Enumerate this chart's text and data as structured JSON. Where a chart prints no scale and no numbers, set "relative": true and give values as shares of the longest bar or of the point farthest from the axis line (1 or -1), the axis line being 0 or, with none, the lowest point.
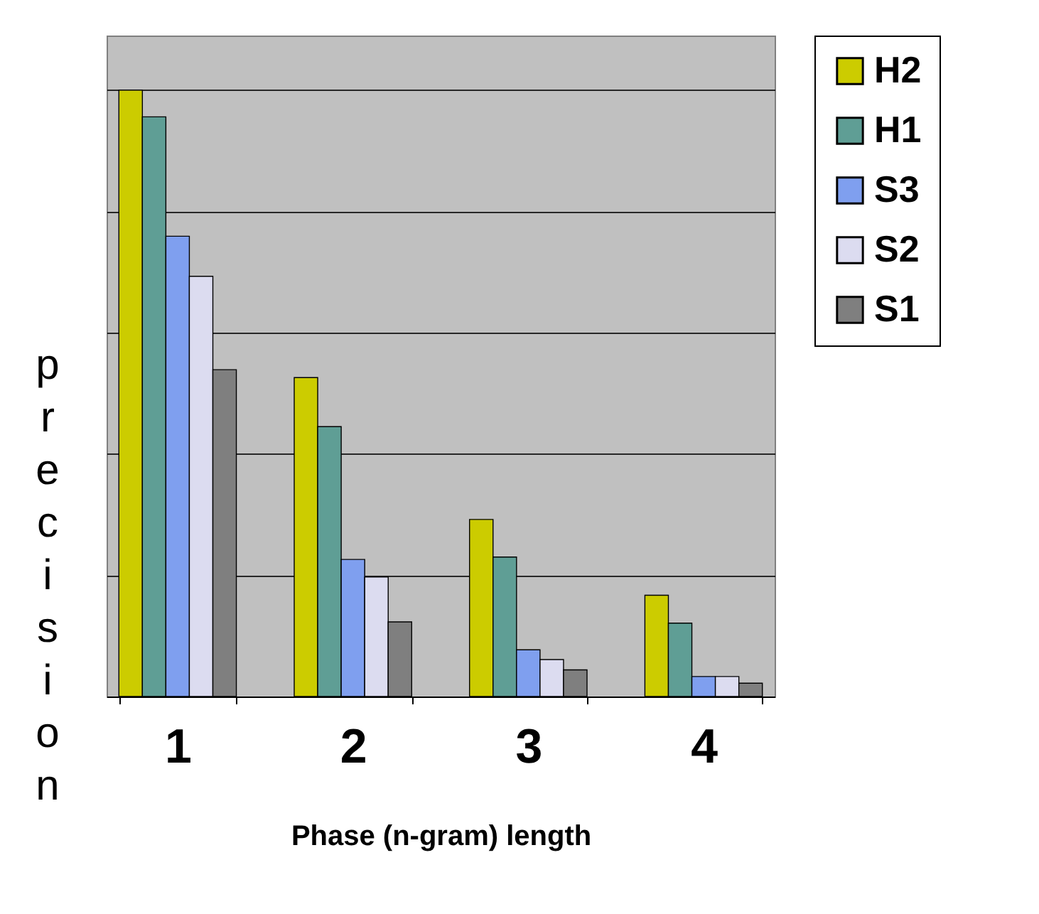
{
  "chart_data": {
    "type": "bar",
    "relative": true,
    "xlabel": "Phase (n-gram) length",
    "ylabel": "precision",
    "categories": [
      "1",
      "2",
      "3",
      "4"
    ],
    "grid": "y",
    "legend": "right",
    "series": [
      {
        "name": "H2",
        "color": "#cccc00",
        "values": [
          1,
          0.526,
          0.292,
          0.167
        ]
      },
      {
        "name": "H1",
        "color": "#5f9e95",
        "values": [
          0.956,
          0.445,
          0.23,
          0.121
        ]
      },
      {
        "name": "S3",
        "color": "#7f9fef",
        "values": [
          0.759,
          0.226,
          0.077,
          0.033
        ]
      },
      {
        "name": "S2",
        "color": "#dcdcf0",
        "values": [
          0.693,
          0.197,
          0.061,
          0.033
        ]
      },
      {
        "name": "S1",
        "color": "#7f7f7f",
        "values": [
          0.539,
          0.123,
          0.044,
          0.022
        ]
      }
    ]
  }
}
